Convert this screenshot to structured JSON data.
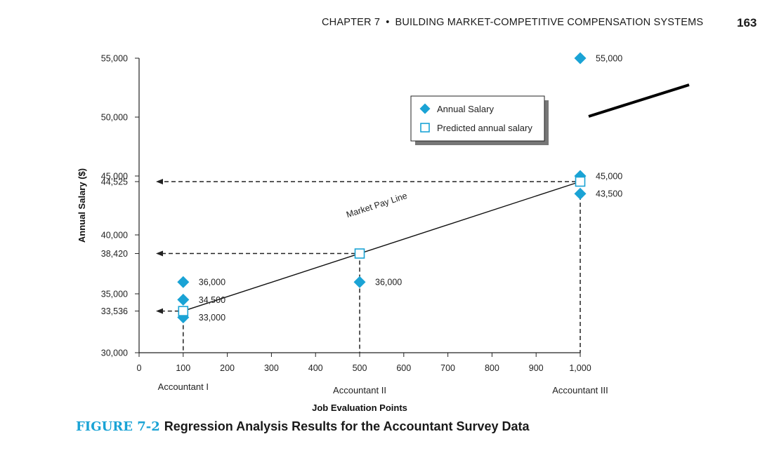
{
  "header": {
    "chapter": "CHAPTER 7",
    "bullet": "•",
    "title": "BUILDING MARKET-COMPETITIVE COMPENSATION SYSTEMS",
    "page_number": "163"
  },
  "caption": {
    "label": "FIGURE 7-2",
    "text": "Regression Analysis Results for the Accountant Survey Data"
  },
  "colors": {
    "diamond": "#1aa3d5",
    "square_stroke": "#1aa3d5",
    "axis": "#222222"
  },
  "chart_data": {
    "type": "scatter",
    "title": "",
    "xlabel": "Job Evaluation Points",
    "ylabel": "Annual Salary ($)",
    "xlim": [
      0,
      1000
    ],
    "ylim": [
      30000,
      55000
    ],
    "x_ticks": [
      {
        "v": 0,
        "label": "0"
      },
      {
        "v": 100,
        "label": "100"
      },
      {
        "v": 200,
        "label": "200"
      },
      {
        "v": 300,
        "label": "300"
      },
      {
        "v": 400,
        "label": "400"
      },
      {
        "v": 500,
        "label": "500"
      },
      {
        "v": 600,
        "label": "600"
      },
      {
        "v": 700,
        "label": "700"
      },
      {
        "v": 800,
        "label": "800"
      },
      {
        "v": 900,
        "label": "900"
      },
      {
        "v": 1000,
        "label": "1,000"
      }
    ],
    "y_ticks": [
      {
        "v": 30000,
        "label": "30,000"
      },
      {
        "v": 33536,
        "label": "33,536"
      },
      {
        "v": 35000,
        "label": "35,000"
      },
      {
        "v": 38420,
        "label": "38,420"
      },
      {
        "v": 40000,
        "label": "40,000"
      },
      {
        "v": 44525,
        "label": "44,525"
      },
      {
        "v": 45000,
        "label": "45,000"
      },
      {
        "v": 50000,
        "label": "50,000"
      },
      {
        "v": 55000,
        "label": "55,000"
      }
    ],
    "categories": [
      {
        "x": 100,
        "label": "Accountant I"
      },
      {
        "x": 500,
        "label": "Accountant II"
      },
      {
        "x": 1000,
        "label": "Accountant III"
      }
    ],
    "legend": {
      "position": "top-center",
      "entries": [
        "Annual Salary",
        "Predicted annual salary"
      ]
    },
    "series": [
      {
        "name": "Annual Salary",
        "marker": "diamond",
        "points": [
          {
            "x": 100,
            "y": 36000,
            "label": "36,000"
          },
          {
            "x": 100,
            "y": 34500,
            "label": "34,500"
          },
          {
            "x": 100,
            "y": 33000,
            "label": "33,000"
          },
          {
            "x": 500,
            "y": 36000,
            "label": "36,000"
          },
          {
            "x": 1000,
            "y": 55000,
            "label": "55,000"
          },
          {
            "x": 1000,
            "y": 45000,
            "label": "45,000"
          },
          {
            "x": 1000,
            "y": 43500,
            "label": "43,500"
          }
        ]
      },
      {
        "name": "Predicted annual salary",
        "marker": "square",
        "points": [
          {
            "x": 100,
            "y": 33536
          },
          {
            "x": 500,
            "y": 38420
          },
          {
            "x": 1000,
            "y": 44525
          }
        ]
      }
    ],
    "regression_line": {
      "label": "Market Pay Line",
      "from": {
        "x": 100,
        "y": 33536
      },
      "to": {
        "x": 1000,
        "y": 44525
      }
    },
    "grid": false
  }
}
